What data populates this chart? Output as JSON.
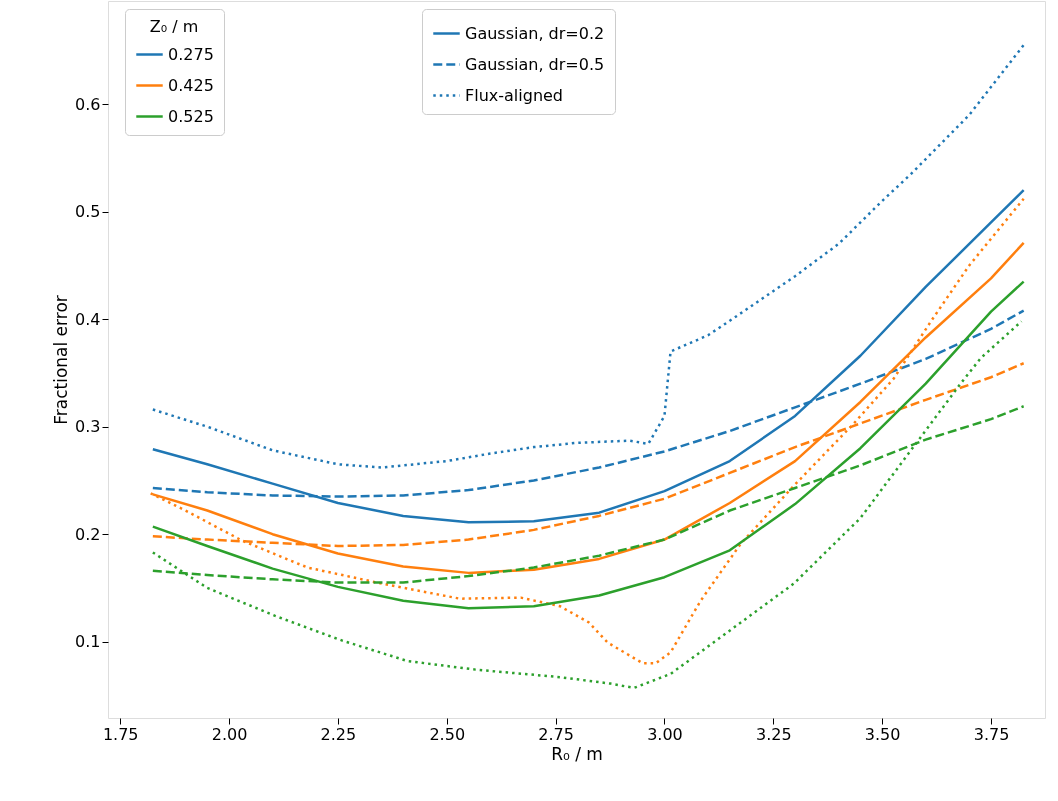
{
  "chart_data": {
    "type": "line",
    "xlabel": "R₀ / m",
    "ylabel": "Fractional error",
    "legend_title": "Z₀ / m",
    "x": [
      1.825,
      1.95,
      2.1,
      2.25,
      2.4,
      2.55,
      2.7,
      2.85,
      3.0,
      3.15,
      3.3,
      3.45,
      3.6,
      3.75,
      3.825
    ],
    "series": [
      {
        "name": "0.275",
        "color": "#1f77b4",
        "line_style": "solid",
        "values": [
          0.279,
          0.265,
          0.247,
          0.229,
          0.217,
          0.211,
          0.212,
          0.22,
          0.24,
          0.268,
          0.31,
          0.366,
          0.43,
          0.49,
          0.52
        ]
      },
      {
        "color": "#1f77b4",
        "line_style": "dashed",
        "values": [
          0.243,
          0.239,
          0.236,
          0.235,
          0.236,
          0.241,
          0.25,
          0.262,
          0.277,
          0.296,
          0.318,
          0.34,
          0.363,
          0.391,
          0.408
        ]
      },
      {
        "color": "#1f77b4",
        "line_style": "dotted",
        "x": [
          1.825,
          1.95,
          2.1,
          2.25,
          2.35,
          2.5,
          2.6,
          2.7,
          2.8,
          2.92,
          2.963,
          3.0,
          3.014,
          3.1,
          3.159,
          3.3,
          3.4,
          3.5,
          3.566,
          3.7,
          3.825
        ],
        "values": [
          0.316,
          0.3,
          0.278,
          0.265,
          0.262,
          0.268,
          0.275,
          0.281,
          0.285,
          0.287,
          0.284,
          0.31,
          0.37,
          0.385,
          0.401,
          0.44,
          0.47,
          0.51,
          0.535,
          0.59,
          0.655
        ]
      },
      {
        "name": "0.425",
        "color": "#ff7f0e",
        "line_style": "solid",
        "values": [
          0.237,
          0.222,
          0.2,
          0.182,
          0.17,
          0.164,
          0.167,
          0.177,
          0.195,
          0.229,
          0.268,
          0.323,
          0.383,
          0.438,
          0.471
        ]
      },
      {
        "color": "#ff7f0e",
        "line_style": "dashed",
        "values": [
          0.198,
          0.195,
          0.192,
          0.189,
          0.19,
          0.195,
          0.204,
          0.217,
          0.233,
          0.257,
          0.281,
          0.303,
          0.325,
          0.346,
          0.359
        ]
      },
      {
        "color": "#ff7f0e",
        "line_style": "dotted",
        "x": [
          1.82,
          1.9,
          2.03,
          2.18,
          2.34,
          2.53,
          2.67,
          2.76,
          2.826,
          2.87,
          2.95,
          2.98,
          3.014,
          3.083,
          3.175,
          3.297,
          3.435,
          3.527,
          3.612,
          3.7,
          3.825
        ],
        "values": [
          0.238,
          0.222,
          0.194,
          0.169,
          0.155,
          0.14,
          0.141,
          0.133,
          0.118,
          0.099,
          0.08,
          0.08,
          0.09,
          0.138,
          0.191,
          0.245,
          0.303,
          0.345,
          0.398,
          0.45,
          0.512
        ]
      },
      {
        "name": "0.525",
        "color": "#2ca02c",
        "line_style": "solid",
        "values": [
          0.207,
          0.189,
          0.168,
          0.151,
          0.138,
          0.131,
          0.133,
          0.143,
          0.16,
          0.185,
          0.228,
          0.28,
          0.34,
          0.407,
          0.435
        ]
      },
      {
        "color": "#2ca02c",
        "line_style": "dashed",
        "values": [
          0.166,
          0.162,
          0.158,
          0.155,
          0.155,
          0.161,
          0.169,
          0.18,
          0.195,
          0.222,
          0.243,
          0.264,
          0.288,
          0.307,
          0.319
        ]
      },
      {
        "color": "#2ca02c",
        "line_style": "dotted",
        "x": [
          1.825,
          1.95,
          2.106,
          2.26,
          2.41,
          2.566,
          2.76,
          2.876,
          2.93,
          3.014,
          3.159,
          3.297,
          3.45,
          3.566,
          3.68,
          3.727,
          3.82
        ],
        "values": [
          0.183,
          0.15,
          0.124,
          0.101,
          0.082,
          0.074,
          0.067,
          0.061,
          0.057,
          0.07,
          0.113,
          0.154,
          0.215,
          0.278,
          0.34,
          0.364,
          0.398
        ]
      }
    ],
    "annotations": [
      "Gaussian, dr=0.2",
      "Gaussian, dr=0.5",
      "Flux-aligned"
    ],
    "xlim": [
      1.722,
      3.874
    ],
    "ylim": [
      0.029,
      0.696
    ],
    "xticks": [
      1.75,
      {
        "value": 2.0,
        "label": "2.00"
      },
      2.25,
      {
        "value": 2.5,
        "label": "2.50"
      },
      2.75,
      {
        "value": 3.0,
        "label": "3.00"
      },
      3.25,
      {
        "value": 3.5,
        "label": "3.50"
      },
      3.75
    ],
    "yticks": [
      0.1,
      0.2,
      0.3,
      0.4,
      0.5,
      0.6
    ],
    "grid": false,
    "legend": "top left",
    "marker": "none"
  }
}
